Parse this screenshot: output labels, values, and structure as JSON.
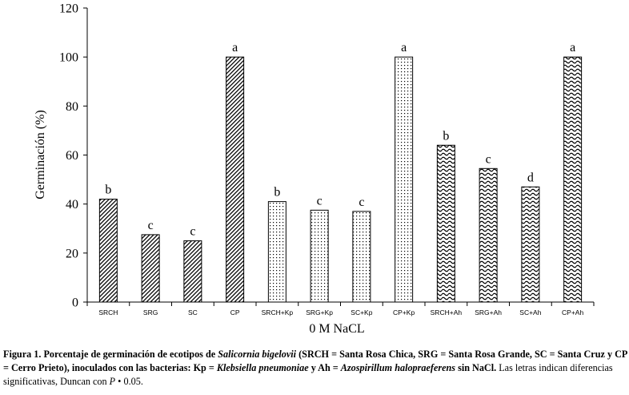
{
  "chart_data": {
    "type": "bar",
    "categories": [
      "SRCH",
      "SRG",
      "SC",
      "CP",
      "SRCH+Kp",
      "SRG+Kp",
      "SC+Kp",
      "CP+Kp",
      "SRCH+Ah",
      "SRG+Ah",
      "SC+Ah",
      "CP+Ah"
    ],
    "values": [
      42,
      27.5,
      25,
      100,
      41,
      37.5,
      37,
      100,
      64,
      54.5,
      47,
      100
    ],
    "significance_letters": [
      "b",
      "c",
      "c",
      "a",
      "b",
      "c",
      "c",
      "a",
      "b",
      "c",
      "d",
      "a"
    ],
    "patterns": [
      "diag",
      "diag",
      "diag",
      "diag",
      "dots",
      "dots",
      "dots",
      "dots",
      "wave",
      "wave",
      "wave",
      "wave"
    ],
    "ylabel": "Germinación (%)",
    "xlabel": "0 M NaCL",
    "ylim": [
      0,
      120
    ],
    "yticks": [
      0,
      20,
      40,
      60,
      80,
      100,
      120
    ],
    "grid": false
  },
  "caption": {
    "fig_label": "Figura 1.",
    "line1_bold": " Porcentaje de germinación de ecotipos de ",
    "species1": "Salicornia bigelovii",
    "line1_rest": " (SRCH = Santa Rosa Chica, SRG = Santa  Rosa Grande, SC = Santa Cruz y CP = Cerro Prieto), inoculados con las bacterias: Kp = ",
    "species2": "Klebsiella pneumoniae",
    "and_text": " y Ah = ",
    "species3": "Azospirillum halopraeferens",
    "sin_text": " sin NaCl.",
    "normal_text": " Las letras indican diferencias significativas, Duncan con ",
    "p_var": "P",
    "p_value": " •  0.05."
  }
}
